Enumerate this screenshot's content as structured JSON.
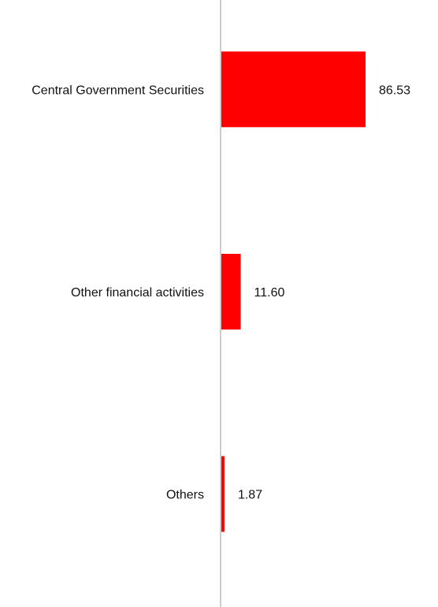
{
  "chart_data": {
    "type": "bar",
    "orientation": "horizontal",
    "categories": [
      "Central Government Securities",
      "Other financial activities",
      "Others"
    ],
    "values": [
      86.53,
      11.6,
      1.87
    ],
    "value_labels": [
      "86.53",
      "11.60",
      "1.87"
    ],
    "xlim": [
      0,
      130
    ],
    "grid": false,
    "legend": "none",
    "colors": {
      "bar": "#ff0000",
      "axis": "#cccccc",
      "text": "#111111"
    }
  }
}
